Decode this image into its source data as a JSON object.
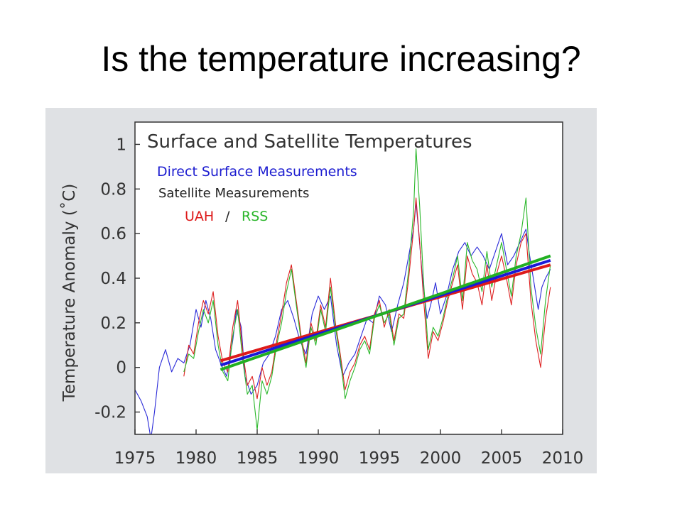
{
  "slide": {
    "title": "Is the temperature increasing?"
  },
  "chart_data": {
    "type": "line",
    "title": "Surface and Satellite Temperatures",
    "ylabel": "Temperature Anomaly (˚C)",
    "xlabel": "",
    "xlim": [
      1975,
      2010
    ],
    "ylim": [
      -0.3,
      1.1
    ],
    "x_ticks": [
      1975,
      1980,
      1985,
      1990,
      1995,
      2000,
      2005,
      2010
    ],
    "y_ticks": [
      -0.2,
      0,
      0.2,
      0.4,
      0.6,
      0.8,
      1
    ],
    "grid": false,
    "legend": {
      "placement": "top-left",
      "entries": [
        {
          "label": "Direct Surface Measurements",
          "color": "#1c1cd0"
        },
        {
          "label": "Satellite Measurements",
          "color": "#222222"
        },
        {
          "label": "UAH",
          "color": "#dd1a1a"
        },
        {
          "label": "/",
          "color": "#222222"
        },
        {
          "label": "RSS",
          "color": "#2ab52a"
        }
      ]
    },
    "series": [
      {
        "key": "surface",
        "name": "Direct Surface Measurements",
        "color": "#2a2ad8",
        "x": [
          1975.0,
          1975.5,
          1976.0,
          1976.3,
          1976.6,
          1977.0,
          1977.5,
          1978.0,
          1978.5,
          1979.0,
          1979.5,
          1980.0,
          1980.4,
          1980.8,
          1981.2,
          1981.6,
          1982.0,
          1982.5,
          1983.0,
          1983.3,
          1983.7,
          1984.0,
          1984.5,
          1985.0,
          1985.5,
          1986.0,
          1986.5,
          1987.0,
          1987.5,
          1988.0,
          1988.5,
          1989.0,
          1989.5,
          1990.0,
          1990.5,
          1991.0,
          1991.5,
          1992.0,
          1992.5,
          1993.0,
          1993.5,
          1994.0,
          1994.5,
          1995.0,
          1995.5,
          1996.0,
          1996.5,
          1997.0,
          1997.4,
          1997.8,
          1998.0,
          1998.2,
          1998.5,
          1998.9,
          1999.2,
          1999.6,
          2000.0,
          2000.5,
          2001.0,
          2001.5,
          2002.0,
          2002.5,
          2003.0,
          2003.5,
          2004.0,
          2004.5,
          2005.0,
          2005.5,
          2006.0,
          2006.5,
          2007.0,
          2007.3,
          2007.6,
          2008.0,
          2008.3,
          2008.6,
          2009.0
        ],
        "y": [
          -0.1,
          -0.15,
          -0.22,
          -0.32,
          -0.2,
          0.0,
          0.08,
          -0.02,
          0.04,
          0.02,
          0.1,
          0.26,
          0.18,
          0.3,
          0.22,
          0.08,
          0.02,
          -0.04,
          0.12,
          0.26,
          0.18,
          -0.04,
          -0.12,
          -0.08,
          0.02,
          0.06,
          0.14,
          0.26,
          0.3,
          0.22,
          0.12,
          0.06,
          0.24,
          0.32,
          0.26,
          0.32,
          0.1,
          -0.04,
          0.02,
          0.06,
          0.14,
          0.22,
          0.2,
          0.32,
          0.28,
          0.16,
          0.28,
          0.38,
          0.5,
          0.62,
          0.74,
          0.62,
          0.42,
          0.22,
          0.28,
          0.38,
          0.24,
          0.32,
          0.44,
          0.52,
          0.56,
          0.5,
          0.54,
          0.5,
          0.44,
          0.52,
          0.6,
          0.46,
          0.5,
          0.56,
          0.62,
          0.5,
          0.4,
          0.26,
          0.36,
          0.4,
          0.44
        ]
      },
      {
        "key": "uah",
        "name": "UAH",
        "color": "#dd2020",
        "x": [
          1979.0,
          1979.4,
          1979.8,
          1980.2,
          1980.6,
          1981.0,
          1981.4,
          1981.8,
          1982.2,
          1982.6,
          1983.0,
          1983.4,
          1983.8,
          1984.2,
          1984.6,
          1985.0,
          1985.4,
          1985.8,
          1986.2,
          1986.6,
          1987.0,
          1987.4,
          1987.8,
          1988.2,
          1988.6,
          1989.0,
          1989.4,
          1989.8,
          1990.2,
          1990.6,
          1991.0,
          1991.4,
          1991.8,
          1992.2,
          1992.6,
          1993.0,
          1993.4,
          1993.8,
          1994.2,
          1994.6,
          1995.0,
          1995.4,
          1995.8,
          1996.2,
          1996.6,
          1997.0,
          1997.4,
          1997.8,
          1998.0,
          1998.3,
          1998.6,
          1999.0,
          1999.4,
          1999.8,
          2000.2,
          2000.6,
          2001.0,
          2001.4,
          2001.8,
          2002.2,
          2002.6,
          2003.0,
          2003.4,
          2003.8,
          2004.2,
          2004.6,
          2005.0,
          2005.4,
          2005.8,
          2006.2,
          2006.6,
          2007.0,
          2007.4,
          2007.8,
          2008.2,
          2008.6,
          2009.0
        ],
        "y": [
          -0.04,
          0.1,
          0.06,
          0.2,
          0.3,
          0.24,
          0.34,
          0.14,
          0.02,
          -0.02,
          0.18,
          0.3,
          0.08,
          -0.08,
          -0.04,
          -0.14,
          0.0,
          -0.08,
          -0.02,
          0.12,
          0.24,
          0.38,
          0.46,
          0.3,
          0.14,
          0.02,
          0.2,
          0.12,
          0.28,
          0.18,
          0.4,
          0.2,
          0.06,
          -0.1,
          -0.02,
          0.02,
          0.1,
          0.14,
          0.08,
          0.24,
          0.3,
          0.18,
          0.26,
          0.12,
          0.24,
          0.22,
          0.4,
          0.62,
          0.76,
          0.56,
          0.32,
          0.04,
          0.16,
          0.12,
          0.2,
          0.3,
          0.38,
          0.46,
          0.26,
          0.5,
          0.42,
          0.38,
          0.28,
          0.46,
          0.3,
          0.42,
          0.5,
          0.4,
          0.28,
          0.46,
          0.56,
          0.6,
          0.3,
          0.12,
          0.0,
          0.22,
          0.36
        ]
      },
      {
        "key": "rss",
        "name": "RSS",
        "color": "#2ab82a",
        "x": [
          1979.0,
          1979.4,
          1979.8,
          1980.2,
          1980.6,
          1981.0,
          1981.4,
          1981.8,
          1982.2,
          1982.6,
          1983.0,
          1983.4,
          1983.8,
          1984.2,
          1984.6,
          1985.0,
          1985.4,
          1985.8,
          1986.2,
          1986.6,
          1987.0,
          1987.4,
          1987.8,
          1988.2,
          1988.6,
          1989.0,
          1989.4,
          1989.8,
          1990.2,
          1990.6,
          1991.0,
          1991.4,
          1991.8,
          1992.2,
          1992.6,
          1993.0,
          1993.4,
          1993.8,
          1994.2,
          1994.6,
          1995.0,
          1995.4,
          1995.8,
          1996.2,
          1996.6,
          1997.0,
          1997.4,
          1997.8,
          1998.0,
          1998.3,
          1998.6,
          1999.0,
          1999.4,
          1999.8,
          2000.2,
          2000.6,
          2001.0,
          2001.4,
          2001.8,
          2002.2,
          2002.6,
          2003.0,
          2003.4,
          2003.8,
          2004.2,
          2004.6,
          2005.0,
          2005.4,
          2005.8,
          2006.2,
          2006.6,
          2007.0,
          2007.4,
          2007.8,
          2008.2,
          2008.6,
          2009.0
        ],
        "y": [
          -0.02,
          0.06,
          0.04,
          0.16,
          0.26,
          0.2,
          0.3,
          0.1,
          -0.02,
          -0.06,
          0.14,
          0.26,
          0.04,
          -0.12,
          -0.08,
          -0.28,
          -0.06,
          -0.12,
          -0.04,
          0.1,
          0.2,
          0.34,
          0.44,
          0.28,
          0.12,
          0.0,
          0.18,
          0.1,
          0.26,
          0.16,
          0.36,
          0.18,
          0.04,
          -0.14,
          -0.06,
          0.0,
          0.08,
          0.12,
          0.06,
          0.22,
          0.28,
          0.2,
          0.24,
          0.1,
          0.22,
          0.24,
          0.44,
          0.7,
          0.98,
          0.72,
          0.4,
          0.08,
          0.18,
          0.14,
          0.22,
          0.32,
          0.4,
          0.5,
          0.3,
          0.56,
          0.48,
          0.44,
          0.34,
          0.52,
          0.36,
          0.46,
          0.56,
          0.44,
          0.32,
          0.5,
          0.6,
          0.76,
          0.36,
          0.18,
          0.06,
          0.3,
          0.46
        ]
      }
    ],
    "trends": [
      {
        "key": "uah-trend",
        "color": "#dd1a1a",
        "x": [
          1982,
          2009
        ],
        "y": [
          0.03,
          0.46
        ]
      },
      {
        "key": "surface-trend",
        "color": "#1a1ad8",
        "x": [
          1982,
          2009
        ],
        "y": [
          0.01,
          0.48
        ]
      },
      {
        "key": "rss-trend",
        "color": "#22b022",
        "x": [
          1982,
          2009
        ],
        "y": [
          -0.01,
          0.5
        ]
      }
    ]
  }
}
